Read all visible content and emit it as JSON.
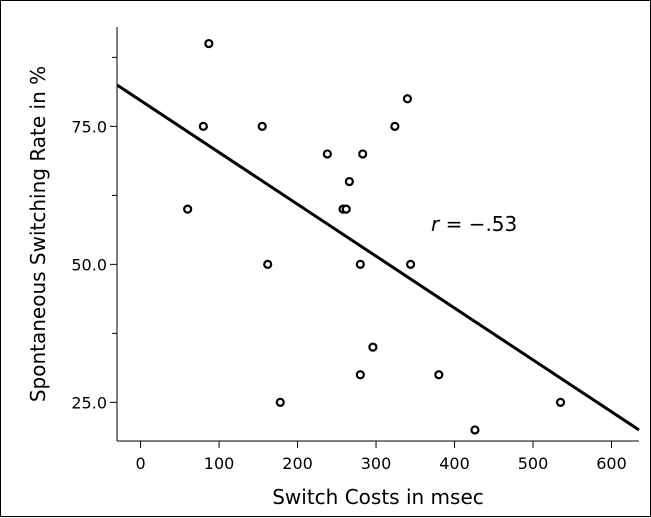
{
  "chart_data": {
    "type": "scatter",
    "title": "",
    "xlabel": "Switch Costs in msec",
    "ylabel": "Spontaneous Switching Rate in %",
    "xlim": [
      -30,
      635
    ],
    "ylim": [
      18,
      93
    ],
    "x_ticks": [
      0,
      100,
      200,
      300,
      400,
      500,
      600
    ],
    "y_ticks": [
      25.0,
      50.0,
      75.0
    ],
    "x_tick_labels": [
      "0",
      "100",
      "200",
      "300",
      "400",
      "500",
      "600"
    ],
    "y_tick_labels": [
      "25.0",
      "50.0",
      "75.0"
    ],
    "y_minor_ticks": [
      37.5,
      62.5,
      87.5
    ],
    "grid": false,
    "points": [
      {
        "x": 60,
        "y": 60
      },
      {
        "x": 80,
        "y": 75
      },
      {
        "x": 87,
        "y": 90
      },
      {
        "x": 155,
        "y": 75
      },
      {
        "x": 162,
        "y": 50
      },
      {
        "x": 178,
        "y": 25
      },
      {
        "x": 238,
        "y": 70
      },
      {
        "x": 258,
        "y": 60
      },
      {
        "x": 262,
        "y": 60
      },
      {
        "x": 266,
        "y": 65
      },
      {
        "x": 280,
        "y": 50
      },
      {
        "x": 280,
        "y": 30
      },
      {
        "x": 283,
        "y": 70
      },
      {
        "x": 296,
        "y": 35
      },
      {
        "x": 324,
        "y": 75
      },
      {
        "x": 340,
        "y": 80
      },
      {
        "x": 344,
        "y": 50
      },
      {
        "x": 380,
        "y": 30
      },
      {
        "x": 426,
        "y": 20
      },
      {
        "x": 535,
        "y": 25
      }
    ],
    "regression_line": {
      "x": [
        -30,
        635
      ],
      "y": [
        82.5,
        20
      ]
    },
    "annotation": {
      "prefix": "r",
      "text": " = −.53",
      "x": 370,
      "y": 56
    }
  }
}
